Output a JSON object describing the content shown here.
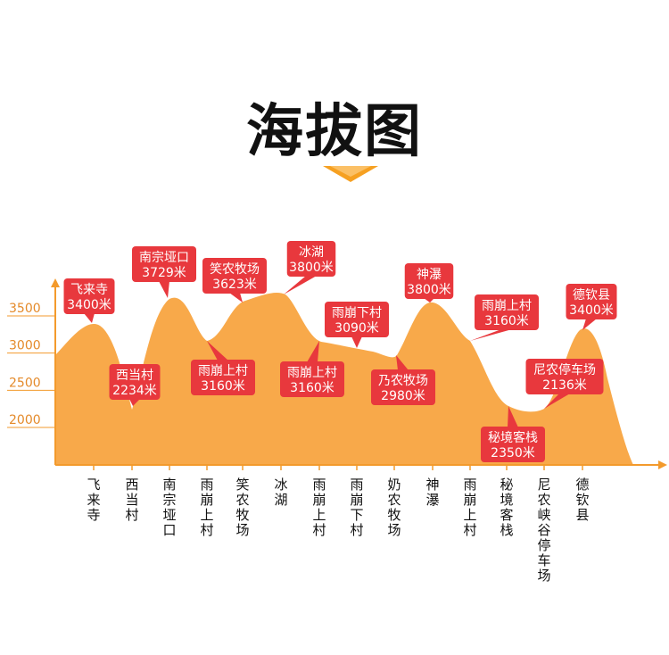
{
  "title": "海拔图",
  "colors": {
    "area_fill": "#f8a94a",
    "axis": "#f39a2c",
    "label_bg": "#e8383d",
    "label_text": "#ffffff",
    "title": "#111111",
    "category_text": "#111111"
  },
  "chart_data": {
    "type": "area",
    "title": "海拔图",
    "ylim": [
      1500,
      4000
    ],
    "yticks": [
      2000,
      2500,
      3000,
      3500
    ],
    "grid": false,
    "categories": [
      "飞来寺",
      "西当村",
      "南宗垭口",
      "雨崩上村",
      "笑农牧场",
      "冰湖",
      "雨崩上村",
      "雨崩下村",
      "奶农牧场",
      "神瀑",
      "雨崩上村",
      "秘境客栈",
      "尼农峡谷停车场",
      "德钦县"
    ],
    "annotations": [
      {
        "name": "飞来寺",
        "value": "3400米",
        "elevation": 3400
      },
      {
        "name": "西当村",
        "value": "2234米",
        "elevation": 2234
      },
      {
        "name": "南宗垭口",
        "value": "3729米",
        "elevation": 3729
      },
      {
        "name": "雨崩上村",
        "value": "3160米",
        "elevation": 3160
      },
      {
        "name": "笑农牧场",
        "value": "3623米",
        "elevation": 3623
      },
      {
        "name": "冰湖",
        "value": "3800米",
        "elevation": 3800
      },
      {
        "name": "雨崩上村",
        "value": "3160米",
        "elevation": 3160
      },
      {
        "name": "雨崩下村",
        "value": "3090米",
        "elevation": 3090
      },
      {
        "name": "乃农牧场",
        "value": "2980米",
        "elevation": 2980
      },
      {
        "name": "神瀑",
        "value": "3800米",
        "elevation": 3800
      },
      {
        "name": "雨崩上村",
        "value": "3160米",
        "elevation": 3160
      },
      {
        "name": "秘境客栈",
        "value": "2350米",
        "elevation": 2350
      },
      {
        "name": "尼农停车场",
        "value": "2136米",
        "elevation": 2136
      },
      {
        "name": "德钦县",
        "value": "3400米",
        "elevation": 3400
      }
    ]
  }
}
